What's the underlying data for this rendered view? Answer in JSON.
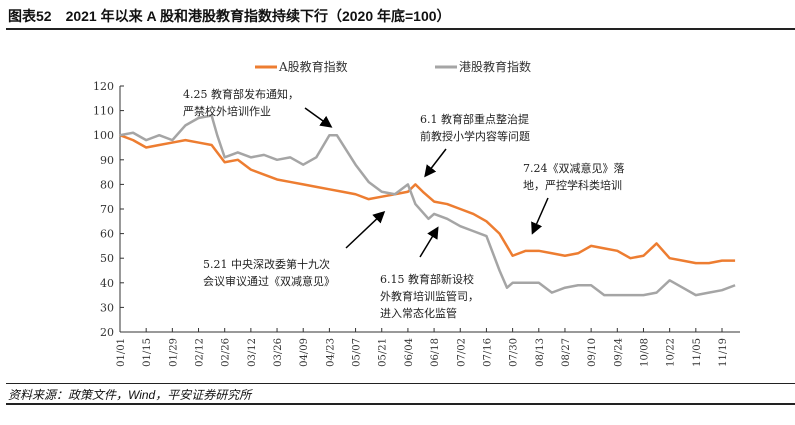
{
  "title": "图表52　2021 年以来 A 股和港股教育指数持续下行（2020 年底=100）",
  "source": "资料来源：政策文件，Wind，平安证券研究所",
  "chart_data": {
    "type": "line",
    "ylim": [
      20,
      120
    ],
    "yticks": [
      20,
      30,
      40,
      50,
      60,
      70,
      80,
      90,
      100,
      110,
      120
    ],
    "xticks": [
      "01/01",
      "01/15",
      "01/29",
      "02/12",
      "02/26",
      "03/12",
      "03/26",
      "04/09",
      "04/23",
      "05/07",
      "05/21",
      "06/04",
      "06/18",
      "07/02",
      "07/16",
      "07/30",
      "08/13",
      "08/27",
      "09/10",
      "09/24",
      "10/08",
      "10/22",
      "11/05",
      "11/19"
    ],
    "legend_position": "top",
    "series": [
      {
        "name": "A股教育指数",
        "color": "#ED7D31",
        "points": [
          [
            "01/01",
            100
          ],
          [
            "01/08",
            98
          ],
          [
            "01/15",
            95
          ],
          [
            "01/22",
            96
          ],
          [
            "01/29",
            97
          ],
          [
            "02/05",
            98
          ],
          [
            "02/12",
            97
          ],
          [
            "02/19",
            96
          ],
          [
            "02/26",
            89
          ],
          [
            "03/05",
            90
          ],
          [
            "03/12",
            86
          ],
          [
            "03/19",
            84
          ],
          [
            "03/26",
            82
          ],
          [
            "04/02",
            81
          ],
          [
            "04/09",
            80
          ],
          [
            "04/16",
            79
          ],
          [
            "04/23",
            78
          ],
          [
            "04/30",
            77
          ],
          [
            "05/07",
            76
          ],
          [
            "05/14",
            74
          ],
          [
            "05/21",
            75
          ],
          [
            "05/28",
            76
          ],
          [
            "06/04",
            77
          ],
          [
            "06/08",
            80
          ],
          [
            "06/12",
            77
          ],
          [
            "06/18",
            73
          ],
          [
            "06/25",
            72
          ],
          [
            "07/02",
            70
          ],
          [
            "07/09",
            68
          ],
          [
            "07/16",
            65
          ],
          [
            "07/23",
            60
          ],
          [
            "07/30",
            51
          ],
          [
            "08/06",
            53
          ],
          [
            "08/13",
            53
          ],
          [
            "08/20",
            52
          ],
          [
            "08/27",
            51
          ],
          [
            "09/03",
            52
          ],
          [
            "09/10",
            55
          ],
          [
            "09/17",
            54
          ],
          [
            "09/24",
            53
          ],
          [
            "10/01",
            50
          ],
          [
            "10/08",
            51
          ],
          [
            "10/15",
            56
          ],
          [
            "10/22",
            50
          ],
          [
            "10/29",
            49
          ],
          [
            "11/05",
            48
          ],
          [
            "11/12",
            48
          ],
          [
            "11/19",
            49
          ],
          [
            "11/26",
            49
          ]
        ]
      },
      {
        "name": "港股教育指数",
        "color": "#A5A5A5",
        "points": [
          [
            "01/01",
            100
          ],
          [
            "01/08",
            101
          ],
          [
            "01/15",
            98
          ],
          [
            "01/22",
            100
          ],
          [
            "01/29",
            98
          ],
          [
            "02/05",
            104
          ],
          [
            "02/12",
            107
          ],
          [
            "02/19",
            108
          ],
          [
            "02/22",
            100
          ],
          [
            "02/26",
            91
          ],
          [
            "03/05",
            93
          ],
          [
            "03/12",
            91
          ],
          [
            "03/19",
            92
          ],
          [
            "03/26",
            90
          ],
          [
            "04/02",
            91
          ],
          [
            "04/09",
            88
          ],
          [
            "04/16",
            91
          ],
          [
            "04/23",
            100
          ],
          [
            "04/27",
            100
          ],
          [
            "05/07",
            88
          ],
          [
            "05/14",
            81
          ],
          [
            "05/21",
            77
          ],
          [
            "05/28",
            76
          ],
          [
            "06/04",
            80
          ],
          [
            "06/08",
            72
          ],
          [
            "06/15",
            66
          ],
          [
            "06/18",
            68
          ],
          [
            "06/25",
            66
          ],
          [
            "07/02",
            63
          ],
          [
            "07/09",
            61
          ],
          [
            "07/16",
            59
          ],
          [
            "07/23",
            45
          ],
          [
            "07/27",
            38
          ],
          [
            "07/30",
            40
          ],
          [
            "08/06",
            40
          ],
          [
            "08/13",
            40
          ],
          [
            "08/20",
            36
          ],
          [
            "08/27",
            38
          ],
          [
            "09/03",
            39
          ],
          [
            "09/10",
            39
          ],
          [
            "09/17",
            35
          ],
          [
            "09/24",
            35
          ],
          [
            "10/01",
            35
          ],
          [
            "10/08",
            35
          ],
          [
            "10/15",
            36
          ],
          [
            "10/22",
            41
          ],
          [
            "10/29",
            38
          ],
          [
            "11/05",
            35
          ],
          [
            "11/12",
            36
          ],
          [
            "11/19",
            37
          ],
          [
            "11/26",
            39
          ]
        ]
      }
    ],
    "annotations": [
      {
        "lines": [
          "4.25 教育部发布通知，",
          "严禁校外培训作业"
        ]
      },
      {
        "lines": [
          "6.1 教育部重点整治提",
          "前教授小学内容等问题"
        ]
      },
      {
        "lines": [
          "7.24《双减意见》落",
          "地，严控学科类培训"
        ]
      },
      {
        "lines": [
          "5.21 中央深改委第十九次",
          "会议审议通过《双减意见》"
        ]
      },
      {
        "lines": [
          "6.15 教育部新设校",
          "外教育培训监管司，",
          "进入常态化监管"
        ]
      }
    ]
  }
}
